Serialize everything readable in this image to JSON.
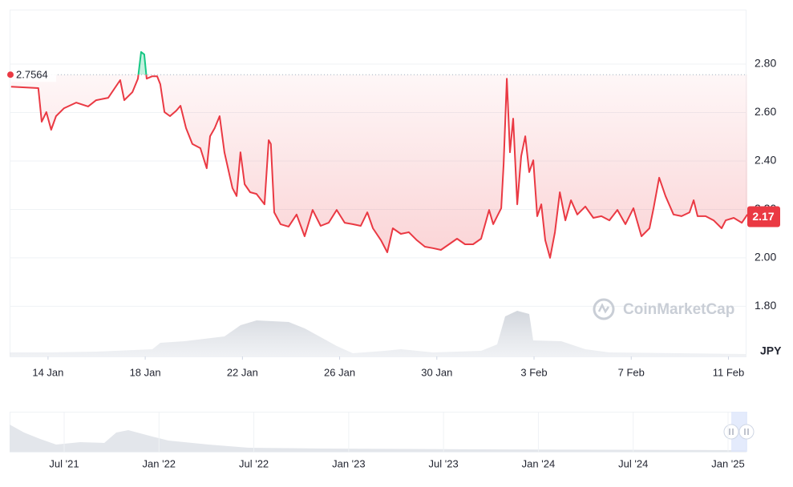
{
  "chart_data": {
    "type": "line",
    "series": [
      {
        "color": "#ea3943",
        "above_color": "#16c784",
        "x": [
          -1.52,
          -0.4,
          -0.26,
          -0.07,
          0.13,
          0.33,
          0.66,
          1.16,
          1.65,
          1.98,
          2.48,
          2.97,
          3.14,
          3.47,
          3.7,
          3.83,
          3.96,
          4.06,
          4.29,
          4.49,
          4.62,
          4.79,
          5.02,
          5.28,
          5.45,
          5.68,
          5.94,
          6.27,
          6.53,
          6.67,
          6.86,
          7.06,
          7.26,
          7.59,
          7.76,
          7.92,
          8.09,
          8.32,
          8.58,
          8.91,
          9.08,
          9.17,
          9.31,
          9.57,
          9.9,
          10.23,
          10.56,
          10.89,
          11.22,
          11.55,
          11.88,
          12.21,
          12.54,
          12.87,
          13.14,
          13.37,
          13.7,
          13.96,
          14.19,
          14.52,
          14.85,
          15.18,
          15.51,
          15.84,
          16.17,
          16.5,
          16.83,
          17.16,
          17.49,
          17.82,
          18.15,
          18.32,
          18.65,
          18.75,
          18.88,
          19.01,
          19.14,
          19.31,
          19.47,
          19.64,
          19.8,
          19.97,
          20.13,
          20.3,
          20.46,
          20.66,
          20.86,
          21.06,
          21.29,
          21.52,
          21.78,
          22.11,
          22.44,
          22.77,
          23.1,
          23.43,
          23.76,
          24.09,
          24.42,
          24.75,
          24.92,
          25.15,
          25.41,
          25.74,
          26.07,
          26.4,
          26.57,
          26.73,
          27.06,
          27.39,
          27.72,
          27.89,
          28.22,
          28.55,
          28.78
        ],
        "values": [
          2.707,
          2.701,
          2.562,
          2.602,
          2.529,
          2.585,
          2.618,
          2.641,
          2.625,
          2.651,
          2.661,
          2.734,
          2.651,
          2.684,
          2.74,
          2.85,
          2.84,
          2.74,
          2.75,
          2.75,
          2.717,
          2.602,
          2.585,
          2.608,
          2.628,
          2.536,
          2.47,
          2.453,
          2.37,
          2.502,
          2.536,
          2.585,
          2.436,
          2.288,
          2.255,
          2.436,
          2.304,
          2.271,
          2.264,
          2.221,
          2.486,
          2.47,
          2.188,
          2.139,
          2.129,
          2.179,
          2.089,
          2.198,
          2.132,
          2.145,
          2.198,
          2.145,
          2.139,
          2.132,
          2.188,
          2.122,
          2.073,
          2.023,
          2.122,
          2.099,
          2.106,
          2.073,
          2.046,
          2.04,
          2.033,
          2.056,
          2.079,
          2.056,
          2.056,
          2.079,
          2.198,
          2.139,
          2.205,
          2.387,
          2.74,
          2.436,
          2.575,
          2.221,
          2.42,
          2.502,
          2.354,
          2.403,
          2.172,
          2.221,
          2.073,
          2.0,
          2.106,
          2.271,
          2.155,
          2.238,
          2.179,
          2.212,
          2.165,
          2.172,
          2.155,
          2.198,
          2.139,
          2.205,
          2.089,
          2.122,
          2.205,
          2.331,
          2.255,
          2.179,
          2.172,
          2.188,
          2.238,
          2.172,
          2.172,
          2.155,
          2.122,
          2.155,
          2.165,
          2.145,
          2.179
        ]
      }
    ],
    "xlim": [
      -1.58,
      28.71
    ],
    "xticks": [
      {
        "value": 0,
        "label": "14 Jan"
      },
      {
        "value": 4,
        "label": "18 Jan"
      },
      {
        "value": 8,
        "label": "22 Jan"
      },
      {
        "value": 12,
        "label": "26 Jan"
      },
      {
        "value": 16,
        "label": "30 Jan"
      },
      {
        "value": 20,
        "label": "3 Feb"
      },
      {
        "value": 24,
        "label": "7 Feb"
      },
      {
        "value": 28,
        "label": "11 Feb"
      }
    ],
    "ylim": [
      1.593,
      3.025
    ],
    "yticks": [
      {
        "value": 1.8,
        "label": "1.80"
      },
      {
        "value": 2.0,
        "label": "2.00"
      },
      {
        "value": 2.2,
        "label": "2.20"
      },
      {
        "value": 2.4,
        "label": "2.40"
      },
      {
        "value": 2.6,
        "label": "2.60"
      },
      {
        "value": 2.8,
        "label": "2.80"
      }
    ],
    "grid": true,
    "reference": 2.7564,
    "current_price": 2.17,
    "currency": "JPY",
    "watermark": "CoinMarketCap",
    "navigator_labels": [
      "Jul '21",
      "Jan '22",
      "Jul '22",
      "Jan '23",
      "Jul '23",
      "Jan '24",
      "Jul '24",
      "Jan '25"
    ]
  }
}
